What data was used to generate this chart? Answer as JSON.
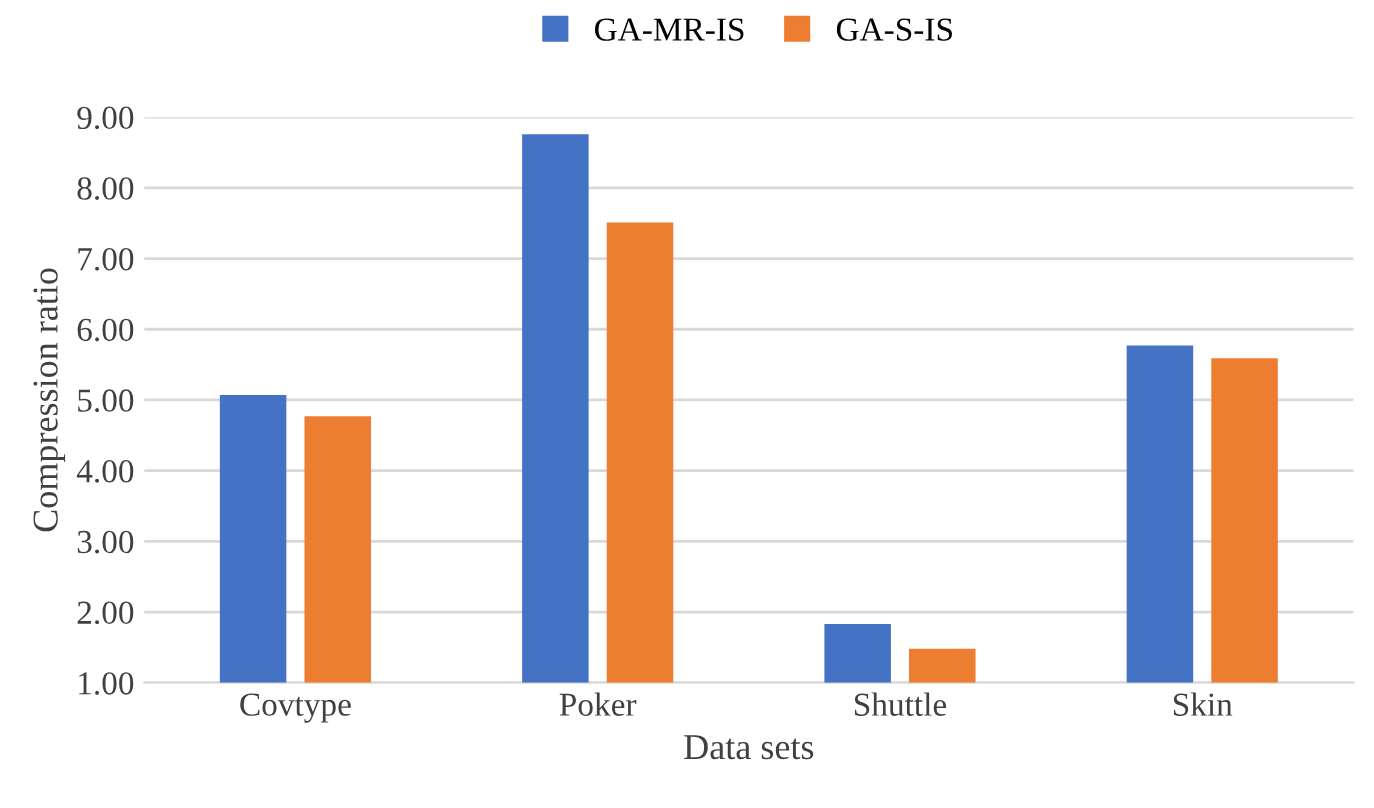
{
  "chart_data": {
    "type": "bar",
    "xlabel": "Data sets",
    "ylabel": "Compression ratio",
    "categories": [
      "Covtype",
      "Poker",
      "Shuttle",
      "Skin"
    ],
    "series": [
      {
        "name": "GA-MR-IS",
        "color": "#4472c4",
        "values": [
          5.07,
          8.76,
          1.83,
          5.77
        ]
      },
      {
        "name": "GA-S-IS",
        "color": "#ed7d31",
        "values": [
          4.77,
          7.51,
          1.48,
          5.59
        ]
      }
    ],
    "ylim": [
      1,
      9
    ],
    "yticks": [
      {
        "value": 1,
        "label": "1.00"
      },
      {
        "value": 2,
        "label": "2.00"
      },
      {
        "value": 3,
        "label": "3.00"
      },
      {
        "value": 4,
        "label": "4.00"
      },
      {
        "value": 5,
        "label": "5.00"
      },
      {
        "value": 6,
        "label": "6.00"
      },
      {
        "value": 7,
        "label": "7.00"
      },
      {
        "value": 8,
        "label": "8.00"
      },
      {
        "value": 9,
        "label": "9.00"
      }
    ],
    "grid": "y",
    "legend": "top"
  }
}
